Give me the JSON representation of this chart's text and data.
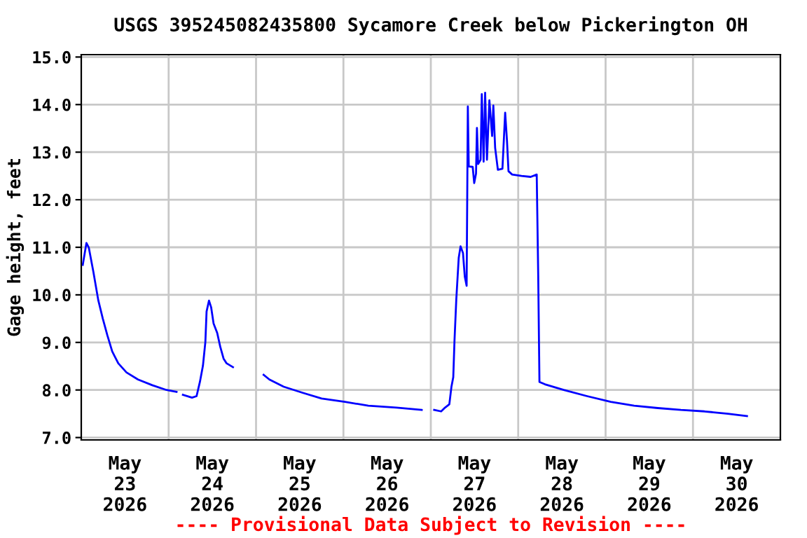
{
  "chart_data": {
    "type": "line",
    "title": "USGS 395245082435800 Sycamore Creek below Pickerington OH",
    "ylabel": "Gage height, feet",
    "annotations": [
      "---- Provisional Data Subject to Revision ----"
    ],
    "x": [
      "2026-05-23T00:25",
      "2026-05-23T01:25",
      "2026-05-23T02:05",
      "2026-05-23T03:20",
      "2026-05-23T04:40",
      "2026-05-23T05:55",
      "2026-05-23T07:10",
      "2026-05-23T08:30",
      "2026-05-23T10:10",
      "2026-05-23T12:25",
      "2026-05-23T15:35",
      "2026-05-23T19:30",
      "2026-05-23T23:25",
      "2026-05-24T02:10",
      "2026-05-24T03:00",
      "2026-05-24T03:55",
      "2026-05-24T06:25",
      "2026-05-24T07:40",
      "2026-05-24T08:35",
      "2026-05-24T09:25",
      "2026-05-24T10:05",
      "2026-05-24T10:25",
      "2026-05-24T11:05",
      "2026-05-24T11:40",
      "2026-05-24T12:20",
      "2026-05-24T13:20",
      "2026-05-24T14:10",
      "2026-05-24T15:05",
      "2026-05-24T15:55",
      "2026-05-24T17:40",
      "2026-05-24T22:00",
      "2026-05-25T02:05",
      "2026-05-25T03:40",
      "2026-05-25T07:35",
      "2026-05-25T12:50",
      "2026-05-25T18:00",
      "2026-05-26T00:25",
      "2026-05-26T06:50",
      "2026-05-26T14:35",
      "2026-05-26T21:30",
      "2026-05-26T23:00",
      "2026-05-27T00:55",
      "2026-05-27T02:50",
      "2026-05-27T03:55",
      "2026-05-27T05:05",
      "2026-05-27T05:40",
      "2026-05-27T06:10",
      "2026-05-27T06:30",
      "2026-05-27T07:00",
      "2026-05-27T07:40",
      "2026-05-27T08:10",
      "2026-05-27T08:50",
      "2026-05-27T09:20",
      "2026-05-27T09:50",
      "2026-05-27T10:00",
      "2026-05-27T10:10",
      "2026-05-27T10:25",
      "2026-05-27T11:30",
      "2026-05-27T11:55",
      "2026-05-27T12:25",
      "2026-05-27T12:40",
      "2026-05-27T13:00",
      "2026-05-27T13:40",
      "2026-05-27T14:00",
      "2026-05-27T14:30",
      "2026-05-27T14:55",
      "2026-05-27T15:25",
      "2026-05-27T16:05",
      "2026-05-27T16:50",
      "2026-05-27T17:10",
      "2026-05-27T17:40",
      "2026-05-27T18:25",
      "2026-05-27T19:40",
      "2026-05-27T20:25",
      "2026-05-27T20:55",
      "2026-05-27T21:20",
      "2026-05-27T22:20",
      "2026-05-28T00:55",
      "2026-05-28T03:25",
      "2026-05-28T05:05",
      "2026-05-28T05:30",
      "2026-05-28T05:50",
      "2026-05-28T07:20",
      "2026-05-28T12:30",
      "2026-05-28T18:55",
      "2026-05-29T01:25",
      "2026-05-29T07:50",
      "2026-05-29T14:20",
      "2026-05-29T20:40",
      "2026-05-30T03:10",
      "2026-05-30T09:35",
      "2026-05-30T14:50"
    ],
    "series": [
      {
        "color": "#0000ff",
        "values": [
          10.63,
          11.09,
          10.99,
          10.48,
          9.89,
          9.5,
          9.15,
          8.81,
          8.56,
          8.37,
          8.22,
          8.1,
          8.0,
          7.96,
          null,
          7.9,
          7.84,
          7.87,
          8.17,
          8.51,
          9.01,
          9.65,
          9.88,
          9.74,
          9.4,
          9.2,
          8.91,
          8.66,
          8.56,
          8.48,
          null,
          8.32,
          8.22,
          8.07,
          7.94,
          7.82,
          7.75,
          7.67,
          7.63,
          7.58,
          null,
          7.58,
          7.55,
          7.63,
          7.7,
          8.07,
          8.27,
          9.03,
          9.91,
          10.78,
          11.02,
          10.88,
          10.38,
          10.19,
          12.06,
          13.96,
          12.7,
          12.69,
          12.35,
          12.55,
          13.51,
          12.75,
          12.84,
          14.22,
          12.8,
          14.25,
          12.84,
          14.09,
          13.34,
          13.98,
          13.09,
          12.63,
          12.65,
          13.83,
          13.24,
          12.6,
          12.53,
          12.5,
          12.48,
          12.53,
          10.38,
          8.17,
          8.12,
          8.0,
          7.87,
          7.75,
          7.67,
          7.62,
          7.58,
          7.55,
          7.5,
          7.45
        ]
      }
    ],
    "xlim": [
      "2026-05-23T00:00",
      "2026-05-31T00:00"
    ],
    "xticks": [
      {
        "value": "2026-05-23T12:00",
        "label": "May\n23\n2026"
      },
      {
        "value": "2026-05-24T00:00",
        "label": null
      },
      {
        "value": "2026-05-24T12:00",
        "label": "May\n24\n2026"
      },
      {
        "value": "2026-05-25T00:00",
        "label": null
      },
      {
        "value": "2026-05-25T12:00",
        "label": "May\n25\n2026"
      },
      {
        "value": "2026-05-26T00:00",
        "label": null
      },
      {
        "value": "2026-05-26T12:00",
        "label": "May\n26\n2026"
      },
      {
        "value": "2026-05-27T00:00",
        "label": null
      },
      {
        "value": "2026-05-27T12:00",
        "label": "May\n27\n2026"
      },
      {
        "value": "2026-05-28T00:00",
        "label": null
      },
      {
        "value": "2026-05-28T12:00",
        "label": "May\n28\n2026"
      },
      {
        "value": "2026-05-29T00:00",
        "label": null
      },
      {
        "value": "2026-05-29T12:00",
        "label": "May\n29\n2026"
      },
      {
        "value": "2026-05-30T00:00",
        "label": null
      },
      {
        "value": "2026-05-30T12:00",
        "label": "May\n30\n2026"
      }
    ],
    "ylim": [
      6.95,
      15.05
    ],
    "yticks": [
      {
        "value": 7,
        "label": "7.0"
      },
      {
        "value": 8,
        "label": "8.0"
      },
      {
        "value": 9,
        "label": "9.0"
      },
      {
        "value": 10,
        "label": "10.0"
      },
      {
        "value": 11,
        "label": "11.0"
      },
      {
        "value": 12,
        "label": "12.0"
      },
      {
        "value": 13,
        "label": "13.0"
      },
      {
        "value": 14,
        "label": "14.0"
      },
      {
        "value": 15,
        "label": "15.0"
      }
    ],
    "grid": true,
    "legend": false,
    "line_style": "solid",
    "marker": "none"
  }
}
